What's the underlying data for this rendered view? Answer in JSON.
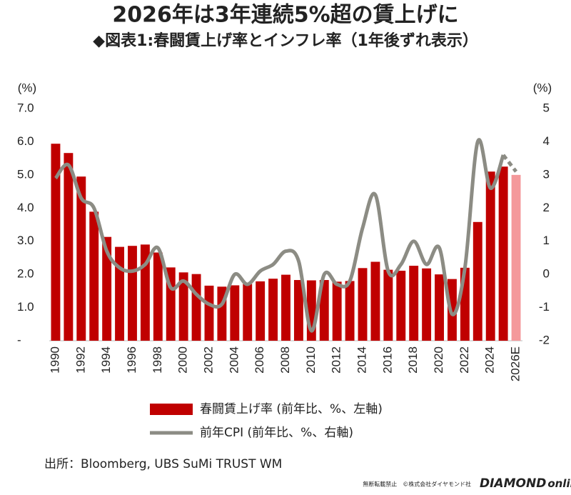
{
  "chart_data": {
    "type": "bar-line",
    "title": "2026年は3年連続5%超の賃上げに",
    "subtitle": "◆図表1:春闘賃上げ率とインフレ率（1年後ずれ表示）",
    "y_unit": "(%)",
    "y2_unit": "(%)",
    "categories": [
      "1990",
      null,
      "1992",
      null,
      "1994",
      null,
      "1996",
      null,
      "1998",
      null,
      "2000",
      null,
      "2002",
      null,
      "2004",
      null,
      "2006",
      null,
      "2008",
      null,
      "2010",
      null,
      "2012",
      null,
      "2014",
      null,
      "2016",
      null,
      "2018",
      null,
      "2020",
      null,
      "2022",
      null,
      "2024",
      null,
      "2026E"
    ],
    "series": [
      {
        "name": "春闘賃上げ率 (前年比、%、左軸)",
        "color": "#c00000",
        "last_color": "#f4999b",
        "values": [
          5.94,
          5.66,
          4.95,
          3.89,
          3.13,
          2.83,
          2.86,
          2.9,
          2.66,
          2.21,
          2.06,
          2.01,
          1.66,
          1.63,
          1.67,
          1.71,
          1.79,
          1.87,
          1.99,
          1.83,
          1.82,
          1.83,
          1.78,
          1.8,
          2.19,
          2.38,
          2.14,
          2.11,
          2.26,
          2.18,
          2.0,
          1.86,
          2.2,
          3.58,
          5.1,
          5.25,
          5.0
        ]
      },
      {
        "name": "前年CPI (前年比、%、右軸)",
        "color": "#8c8c84",
        "axis": "y2",
        "values": [
          2.9,
          3.3,
          2.3,
          2.0,
          0.7,
          0.2,
          0.1,
          0.3,
          0.8,
          -0.4,
          -0.2,
          -0.6,
          -0.9,
          -0.9,
          0.0,
          -0.3,
          0.1,
          0.3,
          0.7,
          0.4,
          -1.7,
          0.0,
          -0.3,
          -0.2,
          1.4,
          2.4,
          0.1,
          0.3,
          1.0,
          0.3,
          0.8,
          -1.2,
          0.2,
          4.0,
          2.6,
          3.6,
          3.1
        ]
      }
    ],
    "ylim": [
      0,
      7
    ],
    "yticks": [
      {
        "value": 0,
        "label": "-"
      },
      {
        "value": 1,
        "label": "1.0"
      },
      {
        "value": 2,
        "label": "2.0"
      },
      {
        "value": 3,
        "label": "3.0"
      },
      {
        "value": 4,
        "label": "4.0"
      },
      {
        "value": 5,
        "label": "5.0"
      },
      {
        "value": 6,
        "label": "6.0"
      },
      {
        "value": 7,
        "label": "7.0"
      }
    ],
    "y2lim": [
      -2,
      5
    ],
    "y2ticks": [
      -2,
      -1,
      0,
      1,
      2,
      3,
      4,
      5
    ],
    "source": "出所：Bloomberg, UBS SuMi TRUST WM"
  },
  "footer": {
    "notice": "無断転載禁止　©株式会社ダイヤモンド社",
    "logo_bold": "DIAMOND",
    "logo_rest": "online"
  }
}
